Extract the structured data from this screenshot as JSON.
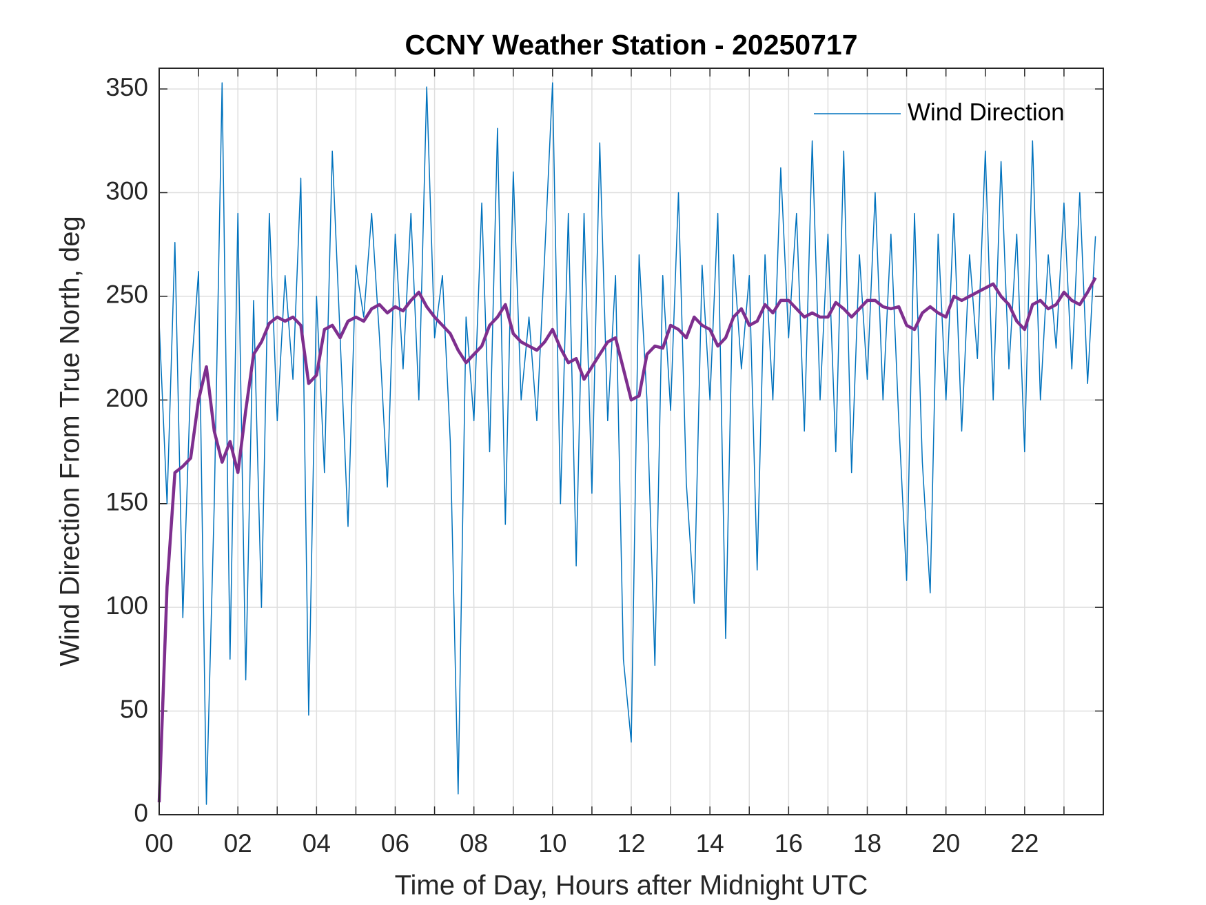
{
  "chart_data": {
    "type": "line",
    "title": "CCNY Weather Station - 20250717",
    "xlabel": "Time of Day, Hours after Midnight UTC",
    "ylabel": "Wind Direction From True North, deg",
    "x": [
      0,
      0.2,
      0.4,
      0.6,
      0.8,
      1,
      1.2,
      1.4,
      1.6,
      1.8,
      2,
      2.2,
      2.4,
      2.6,
      2.8,
      3,
      3.2,
      3.4,
      3.6,
      3.8,
      4,
      4.2,
      4.4,
      4.6,
      4.8,
      5,
      5.2,
      5.4,
      5.6,
      5.8,
      6,
      6.2,
      6.4,
      6.6,
      6.8,
      7,
      7.2,
      7.4,
      7.6,
      7.8,
      8,
      8.2,
      8.4,
      8.6,
      8.8,
      9,
      9.2,
      9.4,
      9.6,
      9.8,
      10,
      10.2,
      10.4,
      10.6,
      10.8,
      11,
      11.2,
      11.4,
      11.6,
      11.8,
      12,
      12.2,
      12.4,
      12.6,
      12.8,
      13,
      13.2,
      13.4,
      13.6,
      13.8,
      14,
      14.2,
      14.4,
      14.6,
      14.8,
      15,
      15.2,
      15.4,
      15.6,
      15.8,
      16,
      16.2,
      16.4,
      16.6,
      16.8,
      17,
      17.2,
      17.4,
      17.6,
      17.8,
      18,
      18.2,
      18.4,
      18.6,
      18.8,
      19,
      19.2,
      19.4,
      19.6,
      19.8,
      20,
      20.2,
      20.4,
      20.6,
      20.8,
      21,
      21.2,
      21.4,
      21.6,
      21.8,
      22,
      22.2,
      22.4,
      22.6,
      22.8,
      23,
      23.2,
      23.4,
      23.6,
      23.8
    ],
    "series": [
      {
        "name": "Wind Direction",
        "color": "#0072bd",
        "width": 1.5,
        "values": [
          237,
          150,
          276,
          95,
          210,
          262,
          5,
          150,
          353,
          75,
          290,
          65,
          248,
          100,
          290,
          190,
          260,
          210,
          307,
          48,
          250,
          165,
          320,
          230,
          139,
          265,
          240,
          290,
          230,
          158,
          280,
          215,
          290,
          200,
          351,
          230,
          260,
          180,
          10,
          240,
          190,
          295,
          175,
          331,
          140,
          310,
          200,
          240,
          190,
          270,
          353,
          150,
          290,
          120,
          290,
          155,
          324,
          190,
          260,
          75,
          35,
          270,
          200,
          72,
          260,
          195,
          300,
          160,
          102,
          265,
          200,
          290,
          85,
          270,
          215,
          260,
          118,
          270,
          200,
          312,
          230,
          290,
          185,
          325,
          200,
          280,
          175,
          320,
          165,
          270,
          210,
          300,
          200,
          280,
          190,
          113,
          290,
          170,
          107,
          280,
          200,
          290,
          185,
          270,
          220,
          320,
          200,
          315,
          215,
          280,
          175,
          325,
          200,
          270,
          225,
          295,
          215,
          300,
          208,
          279
        ]
      },
      {
        "color": "#7e2f8e",
        "width": 4.5,
        "values": [
          6,
          110,
          165,
          168,
          172,
          200,
          216,
          185,
          170,
          180,
          165,
          195,
          222,
          228,
          237,
          240,
          238,
          240,
          236,
          208,
          212,
          234,
          236,
          230,
          238,
          240,
          238,
          244,
          246,
          242,
          245,
          243,
          248,
          252,
          245,
          240,
          236,
          232,
          224,
          218,
          222,
          226,
          236,
          240,
          246,
          232,
          228,
          226,
          224,
          228,
          234,
          225,
          218,
          220,
          210,
          216,
          222,
          228,
          230,
          215,
          200,
          202,
          222,
          226,
          225,
          236,
          234,
          230,
          240,
          236,
          234,
          226,
          230,
          240,
          244,
          236,
          238,
          246,
          242,
          248,
          248,
          244,
          240,
          242,
          240,
          240,
          247,
          244,
          240,
          244,
          248,
          248,
          245,
          244,
          245,
          236,
          234,
          242,
          245,
          242,
          240,
          250,
          248,
          250,
          252,
          254,
          256,
          250,
          246,
          238,
          234,
          246,
          248,
          244,
          246,
          252,
          248,
          246,
          252,
          259
        ]
      }
    ],
    "xlim": [
      0,
      24
    ],
    "xticks": [
      {
        "value": 0,
        "label": "00"
      },
      {
        "value": 2,
        "label": "02"
      },
      {
        "value": 4,
        "label": "04"
      },
      {
        "value": 6,
        "label": "06"
      },
      {
        "value": 8,
        "label": "08"
      },
      {
        "value": 10,
        "label": "10"
      },
      {
        "value": 12,
        "label": "12"
      },
      {
        "value": 14,
        "label": "14"
      },
      {
        "value": 16,
        "label": "16"
      },
      {
        "value": 18,
        "label": "18"
      },
      {
        "value": 20,
        "label": "20"
      },
      {
        "value": 22,
        "label": "22"
      }
    ],
    "xminorticks": [
      1,
      3,
      5,
      7,
      9,
      11,
      13,
      15,
      17,
      19,
      21,
      23
    ],
    "ylim": [
      0,
      360
    ],
    "yticks": [
      0,
      50,
      100,
      150,
      200,
      250,
      300,
      350
    ],
    "grid": true,
    "legend": "upper right"
  }
}
